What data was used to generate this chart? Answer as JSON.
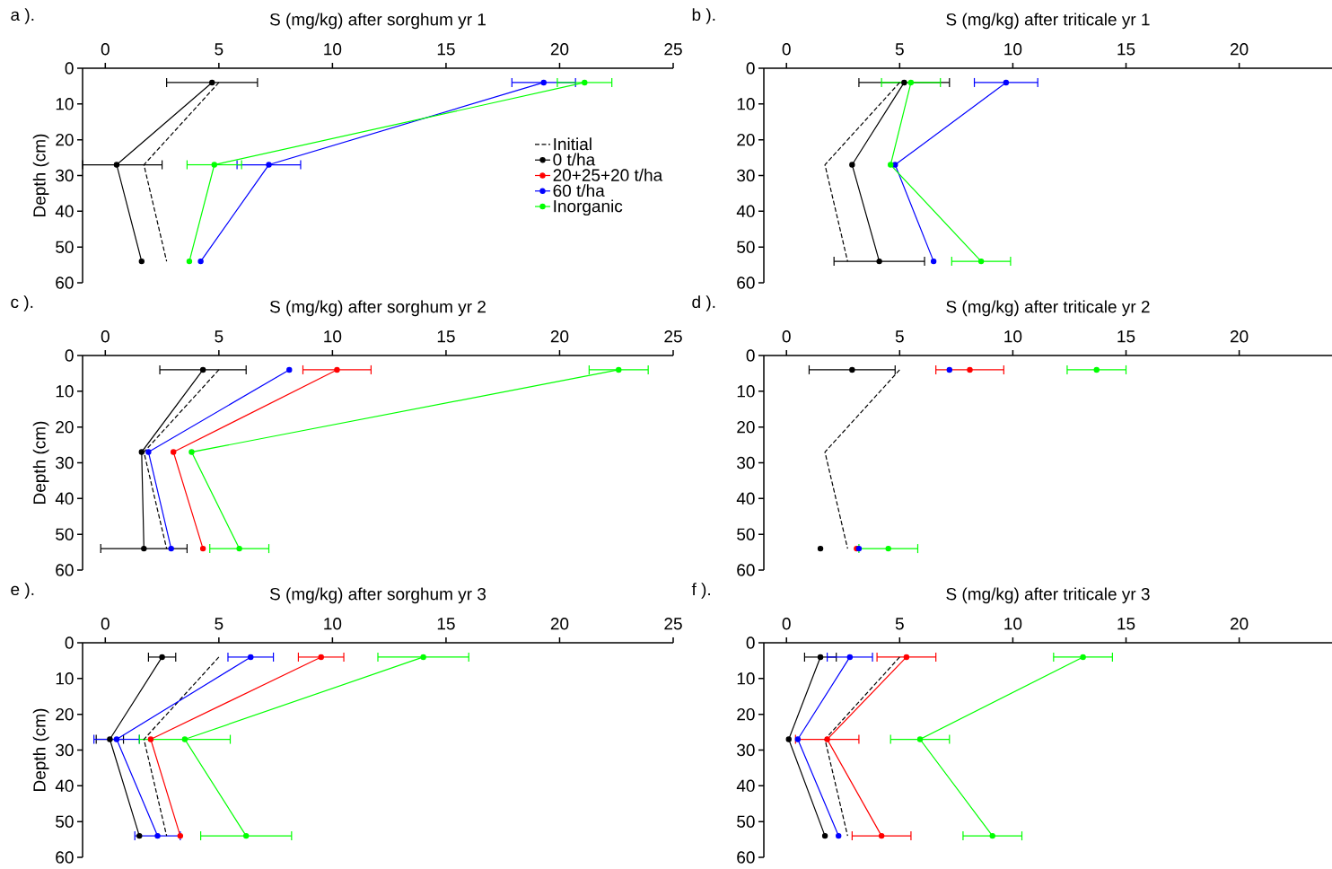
{
  "chart_data": [
    {
      "type": "line",
      "title": "a ).",
      "xlabel": "S (mg/kg) after sorghum yr 1",
      "ylabel": "Depth (cm)",
      "xlim": [
        -1,
        25
      ],
      "xticks": [
        0,
        5,
        10,
        15,
        20,
        25
      ],
      "ylim": [
        60,
        0
      ],
      "yticks": [
        0,
        10,
        20,
        30,
        40,
        50,
        60
      ],
      "marker": "circle",
      "line_style": "solid",
      "legend": "right",
      "series": [
        {
          "name": "Initial",
          "color": "#000000",
          "line_style": "dashed",
          "marker": "none",
          "x": [
            5.0,
            1.7,
            2.7
          ],
          "values": [
            4,
            27,
            54
          ]
        },
        {
          "name": "0 t/ha",
          "color": "#000000",
          "x": [
            4.7,
            0.5,
            1.6
          ],
          "values": [
            4,
            27,
            54
          ],
          "xerrors": [
            2.0,
            [
              -1.0,
              2.5
            ],
            null
          ]
        },
        {
          "name": "20+25+20 t/ha",
          "color": "#ff0000",
          "x": [
            null,
            null,
            null
          ],
          "values": [
            null,
            null,
            null
          ]
        },
        {
          "name": "60 t/ha",
          "color": "#0000ff",
          "x": [
            19.3,
            7.2,
            4.2
          ],
          "values": [
            4,
            27,
            54
          ],
          "xerrors": [
            1.4,
            1.4,
            null
          ]
        },
        {
          "name": "Inorganic",
          "color": "#00ff00",
          "x": [
            21.1,
            4.8,
            3.7
          ],
          "values": [
            4,
            27,
            54
          ],
          "xerrors": [
            1.2,
            1.2,
            null
          ]
        }
      ]
    },
    {
      "type": "line",
      "title": "b ).",
      "xlabel": "S (mg/kg) after triticale yr 1",
      "xlim": [
        -1,
        24.1
      ],
      "xticks": [
        0,
        5,
        10,
        15,
        20
      ],
      "ylim": [
        60,
        0
      ],
      "yticks": [
        0,
        10,
        20,
        30,
        40,
        50,
        60
      ],
      "marker": "circle",
      "line_style": "solid",
      "series": [
        {
          "color": "#000000",
          "line_style": "dashed",
          "marker": "none",
          "x": [
            5.0,
            1.7,
            2.7
          ],
          "values": [
            4,
            27,
            54
          ]
        },
        {
          "color": "#000000",
          "x": [
            5.2,
            2.9,
            4.1
          ],
          "values": [
            4,
            27,
            54
          ],
          "xerrors": [
            2.0,
            null,
            2.0
          ]
        },
        {
          "color": "#0000ff",
          "x": [
            9.7,
            4.8,
            6.5
          ],
          "values": [
            4,
            27,
            54
          ],
          "xerrors": [
            1.4,
            null,
            null
          ]
        },
        {
          "color": "#00ff00",
          "x": [
            5.5,
            4.6,
            8.6
          ],
          "values": [
            4,
            27,
            54
          ],
          "xerrors": [
            1.3,
            null,
            1.3
          ]
        }
      ]
    },
    {
      "type": "line",
      "title": "c ).",
      "xlabel": "S (mg/kg) after sorghum yr 2",
      "ylabel": "Depth (cm)",
      "xlim": [
        -1,
        25
      ],
      "xticks": [
        0,
        5,
        10,
        15,
        20,
        25
      ],
      "ylim": [
        60,
        0
      ],
      "yticks": [
        0,
        10,
        20,
        30,
        40,
        50,
        60
      ],
      "marker": "circle",
      "line_style": "solid",
      "series": [
        {
          "color": "#000000",
          "line_style": "dashed",
          "marker": "none",
          "x": [
            5.0,
            1.7,
            2.7
          ],
          "values": [
            4,
            27,
            54
          ]
        },
        {
          "color": "#000000",
          "x": [
            4.3,
            1.6,
            1.7
          ],
          "values": [
            4,
            27,
            54
          ],
          "xerrors": [
            1.9,
            null,
            1.9
          ]
        },
        {
          "color": "#ff0000",
          "x": [
            10.2,
            3.0,
            4.3
          ],
          "values": [
            4,
            27,
            54
          ],
          "xerrors": [
            1.5,
            null,
            null
          ]
        },
        {
          "color": "#0000ff",
          "x": [
            8.1,
            1.9,
            2.9
          ],
          "values": [
            4,
            27,
            54
          ]
        },
        {
          "color": "#00ff00",
          "x": [
            22.6,
            3.8,
            5.9
          ],
          "values": [
            4,
            27,
            54
          ],
          "xerrors": [
            1.3,
            null,
            1.3
          ]
        }
      ]
    },
    {
      "type": "line",
      "title": "d ).",
      "xlabel": "S (mg/kg) after triticale yr 2",
      "xlim": [
        -1,
        24.1
      ],
      "xticks": [
        0,
        5,
        10,
        15,
        20
      ],
      "ylim": [
        60,
        0
      ],
      "yticks": [
        0,
        10,
        20,
        30,
        40,
        50,
        60
      ],
      "marker": "circle",
      "line_style": "solid",
      "series": [
        {
          "color": "#000000",
          "line_style": "dashed",
          "marker": "none",
          "x": [
            5.0,
            1.7,
            2.7
          ],
          "values": [
            4,
            27,
            54
          ]
        },
        {
          "type": "scatter",
          "color": "#000000",
          "x": [
            2.9,
            null,
            1.5
          ],
          "values": [
            4,
            null,
            54
          ],
          "xerrors": [
            1.9,
            null,
            null
          ]
        },
        {
          "type": "scatter",
          "color": "#ff0000",
          "x": [
            8.1,
            null,
            3.1
          ],
          "values": [
            4,
            null,
            54
          ],
          "xerrors": [
            1.5,
            null,
            null
          ]
        },
        {
          "type": "scatter",
          "color": "#0000ff",
          "x": [
            7.2,
            null,
            3.2
          ],
          "values": [
            4,
            null,
            54
          ]
        },
        {
          "type": "scatter",
          "color": "#00ff00",
          "x": [
            13.7,
            null,
            4.5
          ],
          "values": [
            4,
            null,
            54
          ],
          "xerrors": [
            1.3,
            null,
            1.3
          ]
        }
      ]
    },
    {
      "type": "line",
      "title": "e ).",
      "xlabel": "S (mg/kg) after sorghum yr 3",
      "ylabel": "Depth (cm)",
      "xlim": [
        -1,
        25
      ],
      "xticks": [
        0,
        5,
        10,
        15,
        20,
        25
      ],
      "ylim": [
        60,
        0
      ],
      "yticks": [
        0,
        10,
        20,
        30,
        40,
        50,
        60
      ],
      "marker": "circle",
      "line_style": "solid",
      "series": [
        {
          "color": "#000000",
          "line_style": "dashed",
          "marker": "none",
          "x": [
            5.0,
            1.7,
            2.7
          ],
          "values": [
            4,
            27,
            54
          ]
        },
        {
          "color": "#000000",
          "x": [
            2.5,
            0.2,
            1.5
          ],
          "values": [
            4,
            27,
            54
          ],
          "xerrors": [
            0.6,
            0.6,
            null
          ]
        },
        {
          "color": "#ff0000",
          "x": [
            9.5,
            2.0,
            3.3
          ],
          "values": [
            4,
            27,
            54
          ],
          "xerrors": [
            1.0,
            null,
            null
          ]
        },
        {
          "color": "#0000ff",
          "x": [
            6.4,
            0.5,
            2.3
          ],
          "values": [
            4,
            27,
            54
          ],
          "xerrors": [
            1.0,
            1.0,
            1.0
          ]
        },
        {
          "color": "#00ff00",
          "x": [
            14.0,
            3.5,
            6.2
          ],
          "values": [
            4,
            27,
            54
          ],
          "xerrors": [
            2.0,
            2.0,
            2.0
          ]
        }
      ]
    },
    {
      "type": "line",
      "title": "f ).",
      "xlabel": "S (mg/kg) after triticale yr 3",
      "xlim": [
        -1,
        24.1
      ],
      "xticks": [
        0,
        5,
        10,
        15,
        20
      ],
      "ylim": [
        60,
        0
      ],
      "yticks": [
        0,
        10,
        20,
        30,
        40,
        50,
        60
      ],
      "marker": "circle",
      "line_style": "solid",
      "series": [
        {
          "color": "#000000",
          "line_style": "dashed",
          "marker": "none",
          "x": [
            5.0,
            1.7,
            2.7
          ],
          "values": [
            4,
            27,
            54
          ]
        },
        {
          "color": "#000000",
          "x": [
            1.5,
            0.1,
            1.7
          ],
          "values": [
            4,
            27,
            54
          ],
          "xerrors": [
            0.7,
            null,
            null
          ]
        },
        {
          "color": "#ff0000",
          "x": [
            5.3,
            1.8,
            4.2
          ],
          "values": [
            4,
            27,
            54
          ],
          "xerrors": [
            1.3,
            1.4,
            1.3
          ]
        },
        {
          "color": "#0000ff",
          "x": [
            2.8,
            0.5,
            2.3
          ],
          "values": [
            4,
            27,
            54
          ],
          "xerrors": [
            1.0,
            null,
            null
          ]
        },
        {
          "color": "#00ff00",
          "x": [
            13.1,
            5.9,
            9.1
          ],
          "values": [
            4,
            27,
            54
          ],
          "xerrors": [
            1.3,
            1.3,
            1.3
          ]
        }
      ]
    }
  ]
}
